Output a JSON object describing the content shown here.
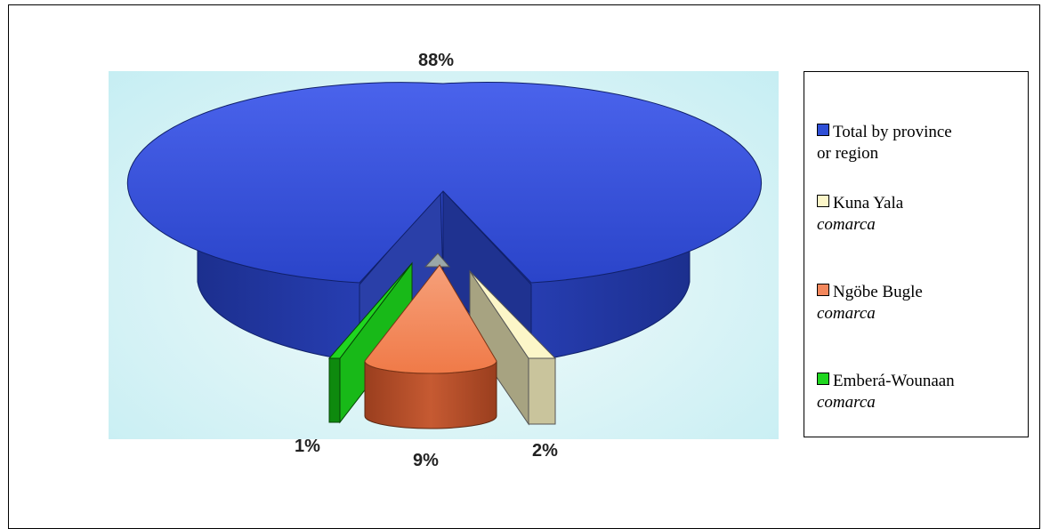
{
  "chart_data": {
    "type": "pie",
    "style": "3d-exploded",
    "title": "",
    "categories": [
      "Total by province or region",
      "Kuna Yala comarca",
      "Ngöbe Bugle comarca",
      "Emberá-Wounaan comarca"
    ],
    "values": [
      88,
      2,
      9,
      1
    ],
    "value_labels": [
      "88%",
      "2%",
      "9%",
      "1%"
    ],
    "colors": [
      "#2f4fd6",
      "#fcf6c8",
      "#f3875c",
      "#1fd61f"
    ],
    "legend_position": "right",
    "legend": [
      {
        "label": "Total by province",
        "label2": "or region",
        "color": "#2f4fd6",
        "icon": "square-swatch"
      },
      {
        "label": "Kuna Yala",
        "label2": "comarca",
        "color": "#fcf6c8",
        "icon": "square-swatch"
      },
      {
        "label": "Ngöbe Bugle",
        "label2": "comarca",
        "color": "#f3875c",
        "icon": "square-swatch"
      },
      {
        "label": "Emberá-Wounaan",
        "label2": "comarca",
        "color": "#1fd61f",
        "icon": "square-swatch"
      }
    ]
  }
}
